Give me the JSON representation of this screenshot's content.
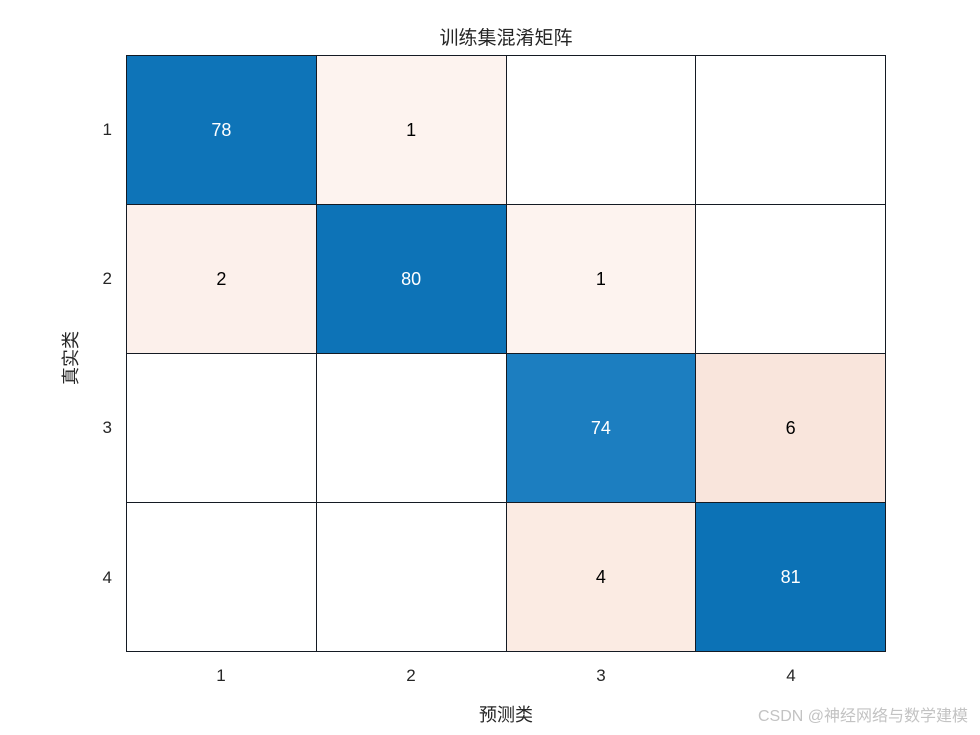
{
  "watermark": "CSDN @神经网络与数学建模",
  "colors": {
    "diagonal_blue_max": "#0c72b6",
    "diagonal_blue_78": "#0e74b8",
    "diagonal_blue_74": "#1c7ec0",
    "offdiagonal_pink_light": "#fdf3ef",
    "offdiagonal_pink_dark": "#f9e5dc",
    "grid_line": "#141a23",
    "axis_text": "#262626",
    "watermark_gray": "#c3c3c3"
  },
  "chart_data": {
    "type": "heatmap",
    "title": "训练集混淆矩阵",
    "xlabel": "预测类",
    "ylabel": "真实类",
    "x_tick_labels": [
      "1",
      "2",
      "3",
      "4"
    ],
    "y_tick_labels": [
      "1",
      "2",
      "3",
      "4"
    ],
    "matrix": [
      [
        78,
        1,
        0,
        0
      ],
      [
        2,
        80,
        1,
        0
      ],
      [
        0,
        0,
        74,
        6
      ],
      [
        0,
        0,
        4,
        81
      ]
    ],
    "cell_labels": [
      [
        "78",
        "1",
        "",
        ""
      ],
      [
        "2",
        "80",
        "1",
        ""
      ],
      [
        "",
        "",
        "74",
        "6"
      ],
      [
        "",
        "",
        "4",
        "81"
      ]
    ],
    "cell_colors": [
      [
        "#0e74b8",
        "#fdf3ef",
        "#ffffff",
        "#ffffff"
      ],
      [
        "#fcf0eb",
        "#0d73b7",
        "#fdf3ef",
        "#ffffff"
      ],
      [
        "#ffffff",
        "#ffffff",
        "#1c7ec0",
        "#f9e5dc"
      ],
      [
        "#ffffff",
        "#ffffff",
        "#fbebe3",
        "#0c72b6"
      ]
    ],
    "cell_text_colors": [
      [
        "#ffffff",
        "#000000",
        "#000000",
        "#000000"
      ],
      [
        "#000000",
        "#ffffff",
        "#000000",
        "#000000"
      ],
      [
        "#000000",
        "#000000",
        "#ffffff",
        "#000000"
      ],
      [
        "#000000",
        "#000000",
        "#000000",
        "#ffffff"
      ]
    ],
    "legend": "none",
    "grid": "on"
  }
}
